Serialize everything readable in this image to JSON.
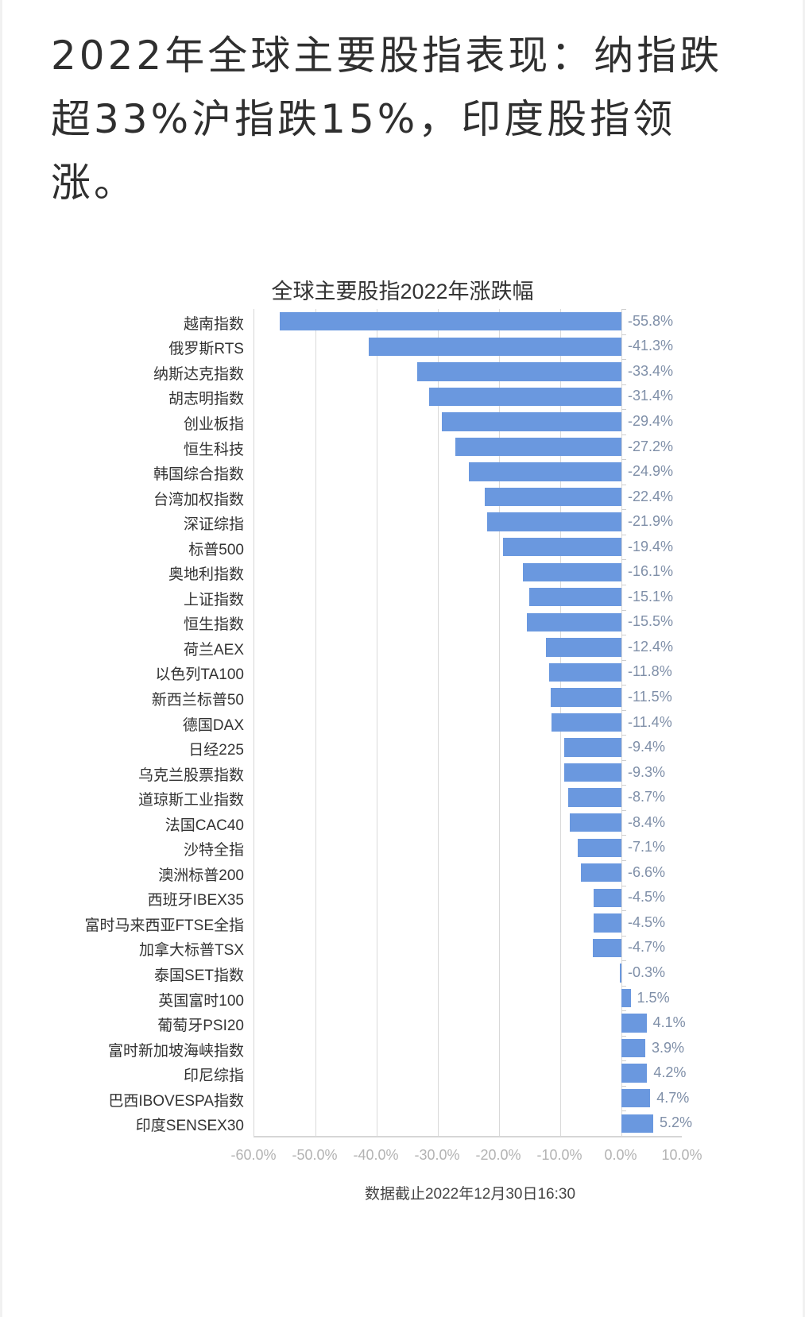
{
  "headline": "2022年全球主要股指表现：纳指跌超33%沪指跌15%，印度股指领涨。",
  "chart_data": {
    "type": "bar",
    "orientation": "horizontal",
    "title": "全球主要股指2022年涨跌幅",
    "xlabel": "",
    "ylabel": "",
    "xlim": [
      -60,
      10
    ],
    "x_ticks": [
      "-60.0%",
      "-50.0%",
      "-40.0%",
      "-30.0%",
      "-20.0%",
      "-10.0%",
      "0.0%",
      "10.0%"
    ],
    "grid": true,
    "legend": null,
    "bar_color": "#6a98df",
    "categories": [
      "越南指数",
      "俄罗斯RTS",
      "纳斯达克指数",
      "胡志明指数",
      "创业板指",
      "恒生科技",
      "韩国综合指数",
      "台湾加权指数",
      "深证综指",
      "标普500",
      "奥地利指数",
      "上证指数",
      "恒生指数",
      "荷兰AEX",
      "以色列TA100",
      "新西兰标普50",
      "德国DAX",
      "日经225",
      "乌克兰股票指数",
      "道琼斯工业指数",
      "法国CAC40",
      "沙特全指",
      "澳洲标普200",
      "西班牙IBEX35",
      "富时马来西亚FTSE全指",
      "加拿大标普TSX",
      "泰国SET指数",
      "英国富时100",
      "葡萄牙PSI20",
      "富时新加坡海峡指数",
      "印尼综指",
      "巴西IBOVESPA指数",
      "印度SENSEX30"
    ],
    "values": [
      -55.8,
      -41.3,
      -33.4,
      -31.4,
      -29.4,
      -27.2,
      -24.9,
      -22.4,
      -21.9,
      -19.4,
      -16.1,
      -15.1,
      -15.5,
      -12.4,
      -11.8,
      -11.5,
      -11.4,
      -9.4,
      -9.3,
      -8.7,
      -8.4,
      -7.1,
      -6.6,
      -4.5,
      -4.5,
      -4.7,
      -0.3,
      1.5,
      4.1,
      3.9,
      4.2,
      4.7,
      5.2
    ],
    "value_labels": [
      "-55.8%",
      "-41.3%",
      "-33.4%",
      "-31.4%",
      "-29.4%",
      "-27.2%",
      "-24.9%",
      "-22.4%",
      "-21.9%",
      "-19.4%",
      "-16.1%",
      "-15.1%",
      "-15.5%",
      "-12.4%",
      "-11.8%",
      "-11.5%",
      "-11.4%",
      "-9.4%",
      "-9.3%",
      "-8.7%",
      "-8.4%",
      "-7.1%",
      "-6.6%",
      "-4.5%",
      "-4.5%",
      "-4.7%",
      "-0.3%",
      "1.5%",
      "4.1%",
      "3.9%",
      "4.2%",
      "4.7%",
      "5.2%"
    ],
    "footnote": "数据截止2022年12月30日16:30"
  }
}
